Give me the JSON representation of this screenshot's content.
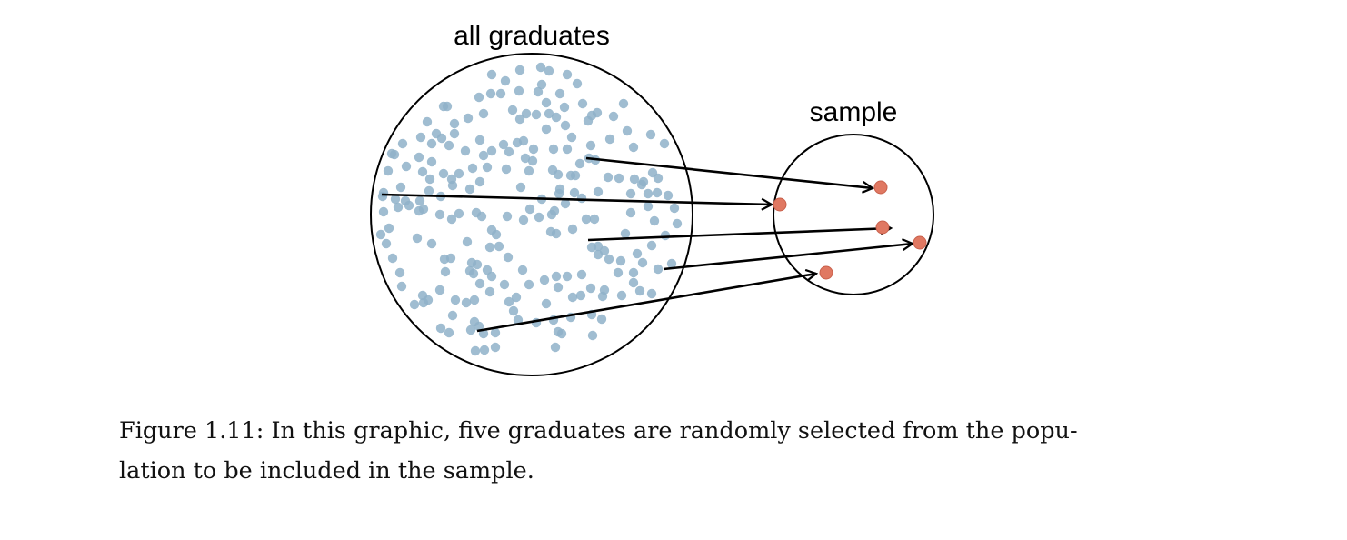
{
  "diagram": {
    "population_label": "all graduates",
    "sample_label": "sample",
    "colors": {
      "population_dot": "#8fb2c9",
      "sample_dot": "#e07862",
      "sample_dot_edge": "#c8604b",
      "outline": "#000000",
      "arrow": "#000000"
    }
  },
  "caption": {
    "line1": "Figure 1.11: In this graphic, five graduates are randomly selected from the popu-",
    "line2": "lation to be included in the sample."
  }
}
